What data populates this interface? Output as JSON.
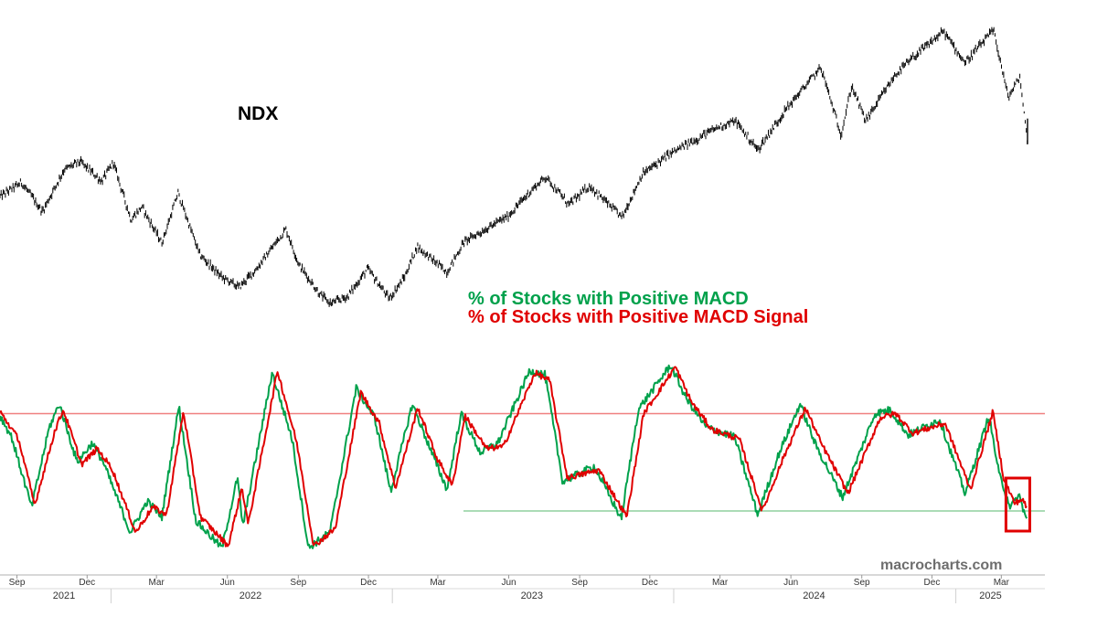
{
  "chart_data": [
    {
      "type": "line",
      "title": "NDX",
      "xlabel": "",
      "ylabel": "",
      "x_range": [
        "2021-08-10",
        "2025-04-04"
      ],
      "series": [
        {
          "name": "NDX",
          "color": "#000000",
          "style": "ohlc-bars",
          "points": [
            [
              "2021-08-10",
              15050
            ],
            [
              "2021-09-07",
              15650
            ],
            [
              "2021-10-04",
              14400
            ],
            [
              "2021-11-01",
              16200
            ],
            [
              "2021-11-22",
              16550
            ],
            [
              "2021-12-20",
              15700
            ],
            [
              "2022-01-04",
              16500
            ],
            [
              "2022-01-27",
              14050
            ],
            [
              "2022-02-10",
              14600
            ],
            [
              "2022-03-08",
              13050
            ],
            [
              "2022-03-29",
              15200
            ],
            [
              "2022-04-26",
              12550
            ],
            [
              "2022-05-24",
              11600
            ],
            [
              "2022-06-16",
              11150
            ],
            [
              "2022-07-08",
              11900
            ],
            [
              "2022-08-16",
              13650
            ],
            [
              "2022-09-02",
              12100
            ],
            [
              "2022-09-30",
              10800
            ],
            [
              "2022-10-13",
              10450
            ],
            [
              "2022-11-04",
              10750
            ],
            [
              "2022-11-30",
              11950
            ],
            [
              "2022-12-28",
              10650
            ],
            [
              "2023-01-17",
              11600
            ],
            [
              "2023-02-02",
              12900
            ],
            [
              "2023-03-13",
              11800
            ],
            [
              "2023-04-04",
              13100
            ],
            [
              "2023-05-31",
              14200
            ],
            [
              "2023-06-30",
              15300
            ],
            [
              "2023-07-19",
              15900
            ],
            [
              "2023-08-18",
              14700
            ],
            [
              "2023-09-14",
              15500
            ],
            [
              "2023-10-26",
              14150
            ],
            [
              "2023-11-21",
              16000
            ],
            [
              "2023-12-28",
              16900
            ],
            [
              "2024-01-30",
              17500
            ],
            [
              "2024-02-29",
              18050
            ],
            [
              "2024-03-21",
              18300
            ],
            [
              "2024-04-19",
              17050
            ],
            [
              "2024-05-28",
              18900
            ],
            [
              "2024-07-10",
              20600
            ],
            [
              "2024-08-05",
              17700
            ],
            [
              "2024-08-19",
              19800
            ],
            [
              "2024-09-06",
              18300
            ],
            [
              "2024-10-15",
              20300
            ],
            [
              "2024-11-06",
              21000
            ],
            [
              "2024-12-16",
              22150
            ],
            [
              "2025-01-13",
              20800
            ],
            [
              "2025-02-19",
              22200
            ],
            [
              "2025-03-10",
              19300
            ],
            [
              "2025-03-25",
              20200
            ],
            [
              "2025-04-04",
              17400
            ]
          ]
        }
      ]
    },
    {
      "type": "line",
      "title": "",
      "xlabel": "",
      "ylabel": "",
      "x_range": [
        "2021-08-10",
        "2025-04-04"
      ],
      "y_range_percent": [
        0,
        100
      ],
      "reference_lines": [
        {
          "value": 73,
          "color": "#f08080"
        },
        {
          "value": 23,
          "color": "#8fd19e"
        }
      ],
      "series": [
        {
          "name": "% of Stocks with Positive MACD",
          "color": "#00a14b",
          "points": [
            [
              "2021-08-10",
              72
            ],
            [
              "2021-08-25",
              61
            ],
            [
              "2021-09-20",
              25
            ],
            [
              "2021-10-13",
              66
            ],
            [
              "2021-10-26",
              78
            ],
            [
              "2021-11-18",
              48
            ],
            [
              "2021-12-08",
              58
            ],
            [
              "2021-12-22",
              48
            ],
            [
              "2022-01-26",
              12
            ],
            [
              "2022-02-17",
              28
            ],
            [
              "2022-03-08",
              20
            ],
            [
              "2022-03-30",
              77
            ],
            [
              "2022-04-21",
              18
            ],
            [
              "2022-05-25",
              4
            ],
            [
              "2022-06-14",
              40
            ],
            [
              "2022-06-21",
              15
            ],
            [
              "2022-07-29",
              94
            ],
            [
              "2022-08-24",
              60
            ],
            [
              "2022-09-14",
              4
            ],
            [
              "2022-10-12",
              12
            ],
            [
              "2022-11-15",
              86
            ],
            [
              "2022-12-09",
              71
            ],
            [
              "2022-12-30",
              33
            ],
            [
              "2023-01-27",
              78
            ],
            [
              "2023-02-22",
              52
            ],
            [
              "2023-03-13",
              34
            ],
            [
              "2023-03-31",
              73
            ],
            [
              "2023-04-25",
              53
            ],
            [
              "2023-05-18",
              58
            ],
            [
              "2023-06-28",
              95
            ],
            [
              "2023-07-18",
              93
            ],
            [
              "2023-08-10",
              38
            ],
            [
              "2023-09-20",
              46
            ],
            [
              "2023-10-25",
              19
            ],
            [
              "2023-11-16",
              75
            ],
            [
              "2023-12-28",
              98
            ],
            [
              "2024-01-17",
              81
            ],
            [
              "2024-02-12",
              66
            ],
            [
              "2024-03-20",
              61
            ],
            [
              "2024-04-19",
              21
            ],
            [
              "2024-05-17",
              53
            ],
            [
              "2024-06-13",
              78
            ],
            [
              "2024-07-03",
              57
            ],
            [
              "2024-08-07",
              30
            ],
            [
              "2024-09-18",
              73
            ],
            [
              "2024-10-08",
              75
            ],
            [
              "2024-10-31",
              62
            ],
            [
              "2024-12-11",
              70
            ],
            [
              "2025-01-13",
              32
            ],
            [
              "2025-02-13",
              72
            ],
            [
              "2025-02-26",
              42
            ],
            [
              "2025-03-13",
              25
            ],
            [
              "2025-03-24",
              31
            ],
            [
              "2025-04-04",
              17
            ]
          ]
        },
        {
          "name": "% of Stocks with Positive MACD Signal",
          "color": "#e00000",
          "points": [
            [
              "2021-08-10",
              74
            ],
            [
              "2021-09-03",
              60
            ],
            [
              "2021-09-24",
              26
            ],
            [
              "2021-10-20",
              64
            ],
            [
              "2021-10-31",
              75
            ],
            [
              "2021-11-24",
              47
            ],
            [
              "2021-12-14",
              55
            ],
            [
              "2022-01-02",
              45
            ],
            [
              "2022-02-02",
              12
            ],
            [
              "2022-02-24",
              25
            ],
            [
              "2022-03-14",
              21
            ],
            [
              "2022-04-05",
              74
            ],
            [
              "2022-04-27",
              20
            ],
            [
              "2022-06-02",
              5
            ],
            [
              "2022-06-20",
              35
            ],
            [
              "2022-06-28",
              16
            ],
            [
              "2022-08-05",
              95
            ],
            [
              "2022-08-30",
              58
            ],
            [
              "2022-09-21",
              5
            ],
            [
              "2022-10-19",
              14
            ],
            [
              "2022-11-21",
              84
            ],
            [
              "2022-12-15",
              68
            ],
            [
              "2023-01-05",
              35
            ],
            [
              "2023-02-03",
              76
            ],
            [
              "2023-02-28",
              50
            ],
            [
              "2023-03-20",
              36
            ],
            [
              "2023-04-05",
              72
            ],
            [
              "2023-05-03",
              55
            ],
            [
              "2023-05-25",
              56
            ],
            [
              "2023-07-05",
              94
            ],
            [
              "2023-07-24",
              90
            ],
            [
              "2023-08-16",
              40
            ],
            [
              "2023-09-26",
              44
            ],
            [
              "2023-11-01",
              20
            ],
            [
              "2023-11-23",
              73
            ],
            [
              "2024-01-03",
              97
            ],
            [
              "2024-01-24",
              79
            ],
            [
              "2024-02-19",
              65
            ],
            [
              "2024-03-26",
              60
            ],
            [
              "2024-04-25",
              23
            ],
            [
              "2024-05-23",
              51
            ],
            [
              "2024-06-20",
              76
            ],
            [
              "2024-07-10",
              58
            ],
            [
              "2024-08-14",
              32
            ],
            [
              "2024-09-25",
              71
            ],
            [
              "2024-10-15",
              73
            ],
            [
              "2024-11-06",
              63
            ],
            [
              "2024-12-18",
              68
            ],
            [
              "2025-01-20",
              34
            ],
            [
              "2025-02-18",
              74
            ],
            [
              "2025-03-04",
              40
            ],
            [
              "2025-03-18",
              27
            ],
            [
              "2025-03-28",
              29
            ],
            [
              "2025-04-04",
              24
            ]
          ]
        }
      ],
      "highlight_box": {
        "from": "2025-03-07",
        "to": "2025-04-07",
        "color": "#e00000"
      }
    }
  ],
  "labels": {
    "ndx": "NDX",
    "legend_macd": "% of Stocks with Positive MACD",
    "legend_signal": "% of Stocks with Positive MACD Signal",
    "watermark": "macrocharts.com"
  },
  "x_axis": {
    "months": [
      {
        "date": "2021-09-01",
        "label": "Sep"
      },
      {
        "date": "2021-12-01",
        "label": "Dec"
      },
      {
        "date": "2022-03-01",
        "label": "Mar"
      },
      {
        "date": "2022-06-01",
        "label": "Jun"
      },
      {
        "date": "2022-09-01",
        "label": "Sep"
      },
      {
        "date": "2022-12-01",
        "label": "Dec"
      },
      {
        "date": "2023-03-01",
        "label": "Mar"
      },
      {
        "date": "2023-06-01",
        "label": "Jun"
      },
      {
        "date": "2023-09-01",
        "label": "Sep"
      },
      {
        "date": "2023-12-01",
        "label": "Dec"
      },
      {
        "date": "2024-03-01",
        "label": "Mar"
      },
      {
        "date": "2024-06-01",
        "label": "Jun"
      },
      {
        "date": "2024-09-01",
        "label": "Sep"
      },
      {
        "date": "2024-12-01",
        "label": "Dec"
      },
      {
        "date": "2025-03-01",
        "label": "Mar"
      }
    ],
    "years": [
      {
        "date": "2021-11-01",
        "label": "2021"
      },
      {
        "date": "2022-07-01",
        "label": "2022"
      },
      {
        "date": "2023-07-01",
        "label": "2023"
      },
      {
        "date": "2024-07-01",
        "label": "2024"
      },
      {
        "date": "2025-02-15",
        "label": "2025"
      }
    ]
  }
}
